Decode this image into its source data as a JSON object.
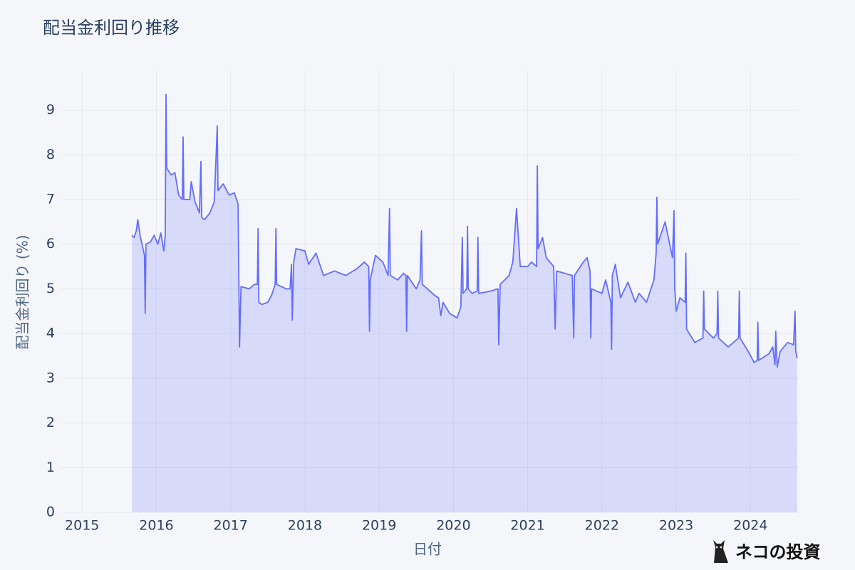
{
  "chart_data": {
    "type": "area",
    "title": "配当金利回り推移",
    "x_label": "日付",
    "y_label": "配当金利回り (%)",
    "watermark": "ネコの投資",
    "color": "#636efa",
    "fill_color": "rgba(99,110,250,0.2)",
    "grid": true,
    "xlim": [
      2014.71,
      2024.64
    ],
    "ylim": [
      0,
      9.87
    ],
    "xticks": [
      2015,
      2016,
      2017,
      2018,
      2019,
      2020,
      2021,
      2022,
      2023,
      2024
    ],
    "yticks": [
      0,
      1,
      2,
      3,
      4,
      5,
      6,
      7,
      8,
      9
    ],
    "x": [
      2015.67,
      2015.7,
      2015.73,
      2015.75,
      2015.78,
      2015.82,
      2015.84,
      2015.85,
      2015.86,
      2015.92,
      2015.97,
      2016.02,
      2016.06,
      2016.1,
      2016.12,
      2016.13,
      2016.14,
      2016.2,
      2016.25,
      2016.3,
      2016.35,
      2016.36,
      2016.37,
      2016.45,
      2016.47,
      2016.52,
      2016.58,
      2016.6,
      2016.61,
      2016.65,
      2016.72,
      2016.78,
      2016.82,
      2016.83,
      2016.9,
      2016.98,
      2017.05,
      2017.1,
      2017.12,
      2017.14,
      2017.25,
      2017.32,
      2017.36,
      2017.37,
      2017.38,
      2017.42,
      2017.5,
      2017.55,
      2017.6,
      2017.61,
      2017.62,
      2017.75,
      2017.8,
      2017.82,
      2017.83,
      2017.85,
      2017.88,
      2018.0,
      2018.05,
      2018.15,
      2018.25,
      2018.4,
      2018.55,
      2018.7,
      2018.8,
      2018.86,
      2018.87,
      2018.88,
      2018.95,
      2019.05,
      2019.12,
      2019.14,
      2019.15,
      2019.25,
      2019.33,
      2019.36,
      2019.37,
      2019.38,
      2019.5,
      2019.55,
      2019.57,
      2019.58,
      2019.65,
      2019.75,
      2019.8,
      2019.83,
      2019.86,
      2019.95,
      2020.05,
      2020.1,
      2020.12,
      2020.13,
      2020.18,
      2020.19,
      2020.2,
      2020.25,
      2020.32,
      2020.33,
      2020.34,
      2020.5,
      2020.6,
      2020.61,
      2020.63,
      2020.75,
      2020.8,
      2020.85,
      2020.9,
      2021.0,
      2021.05,
      2021.12,
      2021.13,
      2021.14,
      2021.2,
      2021.25,
      2021.35,
      2021.37,
      2021.39,
      2021.6,
      2021.62,
      2021.63,
      2021.75,
      2021.8,
      2021.84,
      2021.85,
      2021.86,
      2022.0,
      2022.05,
      2022.12,
      2022.13,
      2022.14,
      2022.18,
      2022.25,
      2022.35,
      2022.45,
      2022.5,
      2022.6,
      2022.7,
      2022.73,
      2022.74,
      2022.75,
      2022.85,
      2022.9,
      2022.95,
      2022.97,
      2022.98,
      2023.0,
      2023.05,
      2023.12,
      2023.13,
      2023.14,
      2023.25,
      2023.36,
      2023.37,
      2023.38,
      2023.5,
      2023.55,
      2023.56,
      2023.57,
      2023.7,
      2023.84,
      2023.85,
      2023.86,
      2023.97,
      2024.05,
      2024.09,
      2024.1,
      2024.11,
      2024.25,
      2024.3,
      2024.33,
      2024.34,
      2024.36,
      2024.4,
      2024.5,
      2024.58,
      2024.6,
      2024.61,
      2024.63
    ],
    "values": [
      6.2,
      6.15,
      6.3,
      6.55,
      6.2,
      5.9,
      5.75,
      4.45,
      6.0,
      6.05,
      6.2,
      6.0,
      6.25,
      5.85,
      6.2,
      9.35,
      7.7,
      7.55,
      7.6,
      7.1,
      7.0,
      8.4,
      7.0,
      7.0,
      7.4,
      6.95,
      6.7,
      7.85,
      6.6,
      6.55,
      6.7,
      6.95,
      8.65,
      7.2,
      7.35,
      7.1,
      7.15,
      6.9,
      3.7,
      5.05,
      5.0,
      5.1,
      5.1,
      6.35,
      4.7,
      4.65,
      4.7,
      4.85,
      5.1,
      6.35,
      5.1,
      5.0,
      5.0,
      5.55,
      4.3,
      5.6,
      5.9,
      5.85,
      5.55,
      5.8,
      5.3,
      5.4,
      5.3,
      5.45,
      5.6,
      5.5,
      4.05,
      5.2,
      5.75,
      5.6,
      5.3,
      6.8,
      5.3,
      5.2,
      5.35,
      5.3,
      4.05,
      5.3,
      5.0,
      5.2,
      6.3,
      5.1,
      5.0,
      4.85,
      4.8,
      4.4,
      4.7,
      4.45,
      4.35,
      4.6,
      6.15,
      4.9,
      5.0,
      6.4,
      5.0,
      4.9,
      4.95,
      6.15,
      4.9,
      4.95,
      5.0,
      3.75,
      5.1,
      5.3,
      5.6,
      6.8,
      5.5,
      5.5,
      5.6,
      5.5,
      7.75,
      5.9,
      6.15,
      5.7,
      5.5,
      4.1,
      5.4,
      5.3,
      3.9,
      5.3,
      5.6,
      5.7,
      5.4,
      3.9,
      5.0,
      4.9,
      5.2,
      4.7,
      3.65,
      5.3,
      5.55,
      4.8,
      5.15,
      4.7,
      4.9,
      4.7,
      5.2,
      5.8,
      7.05,
      6.0,
      6.5,
      6.1,
      5.7,
      6.75,
      5.0,
      4.5,
      4.8,
      4.7,
      5.8,
      4.1,
      3.8,
      3.9,
      4.95,
      4.1,
      3.9,
      4.0,
      4.95,
      3.9,
      3.7,
      3.9,
      4.95,
      3.9,
      3.6,
      3.35,
      3.4,
      4.25,
      3.4,
      3.55,
      3.7,
      3.3,
      4.05,
      3.25,
      3.6,
      3.8,
      3.75,
      4.5,
      3.6,
      3.45
    ]
  }
}
